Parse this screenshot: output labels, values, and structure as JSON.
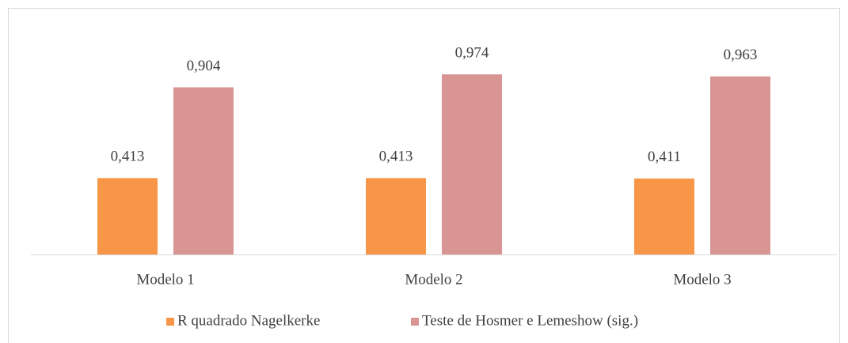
{
  "chart_data": {
    "type": "bar",
    "categories": [
      "Modelo 1",
      "Modelo 2",
      "Modelo 3"
    ],
    "series": [
      {
        "name": "R quadrado Nagelkerke",
        "color": "#f79646",
        "values": [
          0.413,
          0.413,
          0.411
        ],
        "value_labels": [
          "0,413",
          "0,413",
          "0,411"
        ]
      },
      {
        "name": "Teste de Hosmer e Lemeshow (sig.)",
        "color": "#d99594",
        "values": [
          0.904,
          0.974,
          0.963
        ],
        "value_labels": [
          "0,904",
          "0,974",
          "0,963"
        ]
      }
    ],
    "ylim": [
      0,
      1
    ],
    "legend": "bottom"
  }
}
